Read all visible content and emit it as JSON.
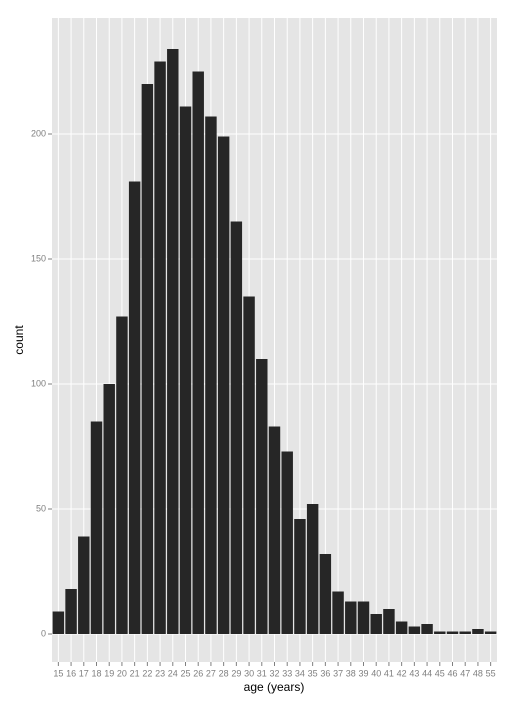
{
  "chart_data": {
    "type": "bar",
    "x_label": "age (years)",
    "y_label": "count",
    "categories": [
      "15",
      "16",
      "17",
      "18",
      "19",
      "20",
      "21",
      "22",
      "23",
      "24",
      "25",
      "26",
      "27",
      "28",
      "29",
      "30",
      "31",
      "32",
      "33",
      "34",
      "35",
      "36",
      "37",
      "38",
      "39",
      "40",
      "41",
      "42",
      "43",
      "44",
      "45",
      "46",
      "47",
      "48",
      "55"
    ],
    "values": [
      9,
      18,
      39,
      85,
      100,
      127,
      181,
      220,
      229,
      234,
      211,
      225,
      207,
      199,
      165,
      135,
      110,
      83,
      73,
      46,
      52,
      32,
      17,
      13,
      13,
      8,
      10,
      5,
      3,
      4,
      1,
      1,
      1,
      2,
      1
    ],
    "color": "#262626",
    "ylim": [
      -11.2,
      246.4
    ],
    "yticks": [
      0,
      50,
      100,
      150,
      200
    ],
    "grid": true
  }
}
